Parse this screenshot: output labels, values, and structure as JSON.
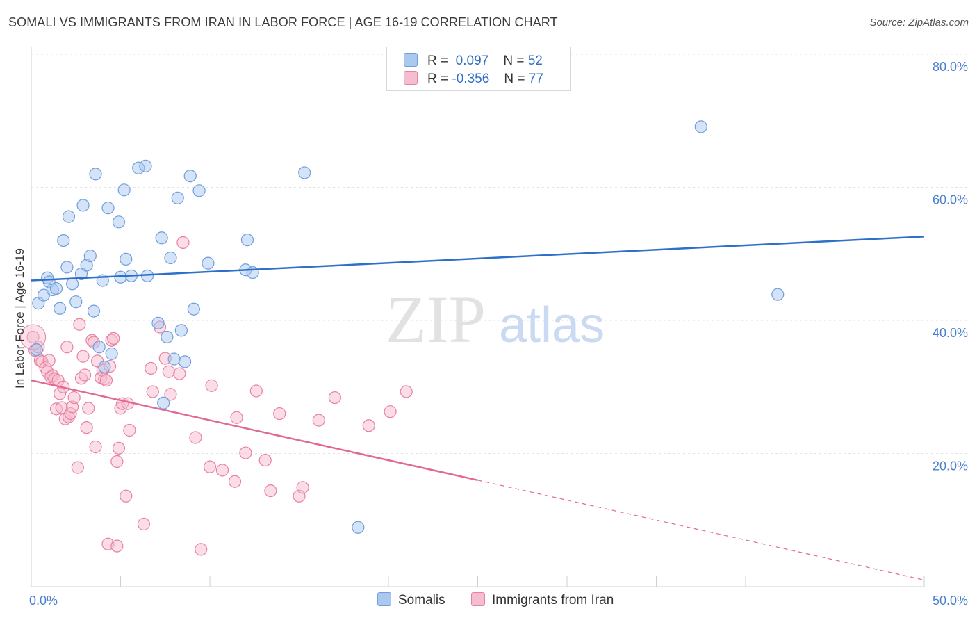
{
  "title": "SOMALI VS IMMIGRANTS FROM IRAN IN LABOR FORCE | AGE 16-19 CORRELATION CHART",
  "source": "Source: ZipAtlas.com",
  "watermark": {
    "zip": "ZIP",
    "atlas": "atlas"
  },
  "colors": {
    "blue_fill": "#aac8f0",
    "blue_stroke": "#6f9fdc",
    "blue_line": "#2e6fc9",
    "pink_fill": "#f6bcd0",
    "pink_stroke": "#e9819f",
    "pink_line": "#e06a95"
  },
  "legend": {
    "rows": [
      {
        "r_label": "R =",
        "r_value": "0.097",
        "n_label": "N =",
        "n_value": "52"
      },
      {
        "r_label": "R =",
        "r_value": "-0.356",
        "n_label": "N =",
        "n_value": "77"
      }
    ]
  },
  "bottom_legend": [
    "Somalis",
    "Immigrants from Iran"
  ],
  "chart_data": {
    "type": "scatter",
    "title": "SOMALI VS IMMIGRANTS FROM IRAN IN LABOR FORCE | AGE 16-19 CORRELATION CHART",
    "ylabel": "In Labor Force | Age 16-19",
    "xlim": [
      0,
      50
    ],
    "ylim": [
      0,
      80
    ],
    "x_tick_labels": [
      "0.0%",
      "50.0%"
    ],
    "y_ticks": [
      20,
      40,
      60,
      80
    ],
    "y_tick_labels": [
      "20.0%",
      "40.0%",
      "60.0%",
      "80.0%"
    ],
    "grid": "horizontal dashed",
    "legend_placement": "top-center",
    "series": [
      {
        "name": "Somalis",
        "r": 0.097,
        "n": 52,
        "trend": {
          "x": [
            0,
            50
          ],
          "y": [
            46.0,
            52.6
          ],
          "dashed_from": null
        },
        "points": [
          [
            0.4,
            42.6
          ],
          [
            0.7,
            43.8
          ],
          [
            0.9,
            46.4
          ],
          [
            1.0,
            45.8
          ],
          [
            1.2,
            44.6
          ],
          [
            1.4,
            44.8
          ],
          [
            1.6,
            41.8
          ],
          [
            1.8,
            52.0
          ],
          [
            2.0,
            48.0
          ],
          [
            2.1,
            55.6
          ],
          [
            2.3,
            45.5
          ],
          [
            2.5,
            42.8
          ],
          [
            2.8,
            47.0
          ],
          [
            2.9,
            57.3
          ],
          [
            3.1,
            48.3
          ],
          [
            3.3,
            49.7
          ],
          [
            3.5,
            41.4
          ],
          [
            3.6,
            62.0
          ],
          [
            3.8,
            36.0
          ],
          [
            4.0,
            46.0
          ],
          [
            4.1,
            33.0
          ],
          [
            4.3,
            56.9
          ],
          [
            4.5,
            35.0
          ],
          [
            4.9,
            54.8
          ],
          [
            5.0,
            46.5
          ],
          [
            5.2,
            59.6
          ],
          [
            5.3,
            49.2
          ],
          [
            5.6,
            46.7
          ],
          [
            6.0,
            62.9
          ],
          [
            6.4,
            63.2
          ],
          [
            7.1,
            39.6
          ],
          [
            7.3,
            52.4
          ],
          [
            7.4,
            27.6
          ],
          [
            7.6,
            37.5
          ],
          [
            7.8,
            49.4
          ],
          [
            8.0,
            34.2
          ],
          [
            8.2,
            58.4
          ],
          [
            8.4,
            38.5
          ],
          [
            8.6,
            33.8
          ],
          [
            8.9,
            61.7
          ],
          [
            9.1,
            41.7
          ],
          [
            9.4,
            59.5
          ],
          [
            9.9,
            48.6
          ],
          [
            12.0,
            47.6
          ],
          [
            12.1,
            52.1
          ],
          [
            12.4,
            47.2
          ],
          [
            15.3,
            62.2
          ],
          [
            18.3,
            8.9
          ],
          [
            37.5,
            69.1
          ],
          [
            41.8,
            43.9
          ],
          [
            0.3,
            35.6
          ],
          [
            6.5,
            46.7
          ]
        ]
      },
      {
        "name": "Immigrants from Iran",
        "r": -0.356,
        "n": 77,
        "trend": {
          "x": [
            0,
            50
          ],
          "y": [
            31.0,
            1.0
          ],
          "dashed_from": 25.0
        },
        "points": [
          [
            0.1,
            37.5
          ],
          [
            0.2,
            35.5
          ],
          [
            0.4,
            36.0
          ],
          [
            0.5,
            34.0
          ],
          [
            0.6,
            33.8
          ],
          [
            0.8,
            32.9
          ],
          [
            0.9,
            32.3
          ],
          [
            1.0,
            34.0
          ],
          [
            1.1,
            31.5
          ],
          [
            1.2,
            31.7
          ],
          [
            1.3,
            31.2
          ],
          [
            1.4,
            26.7
          ],
          [
            1.5,
            31.0
          ],
          [
            1.6,
            29.0
          ],
          [
            1.7,
            26.9
          ],
          [
            1.8,
            30.0
          ],
          [
            1.9,
            25.2
          ],
          [
            2.0,
            36.0
          ],
          [
            2.1,
            25.5
          ],
          [
            2.2,
            26.0
          ],
          [
            2.3,
            27.0
          ],
          [
            2.4,
            28.4
          ],
          [
            2.6,
            17.9
          ],
          [
            2.7,
            39.4
          ],
          [
            2.8,
            31.3
          ],
          [
            2.9,
            34.6
          ],
          [
            3.0,
            31.8
          ],
          [
            3.1,
            23.9
          ],
          [
            3.2,
            26.8
          ],
          [
            3.4,
            37.0
          ],
          [
            3.5,
            36.7
          ],
          [
            3.6,
            21.0
          ],
          [
            3.7,
            33.9
          ],
          [
            3.9,
            31.4
          ],
          [
            4.0,
            32.5
          ],
          [
            4.1,
            31.2
          ],
          [
            4.2,
            31.0
          ],
          [
            4.3,
            6.4
          ],
          [
            4.4,
            33.1
          ],
          [
            4.5,
            37.0
          ],
          [
            4.6,
            37.3
          ],
          [
            4.8,
            18.8
          ],
          [
            4.8,
            6.1
          ],
          [
            4.9,
            20.8
          ],
          [
            5.0,
            26.8
          ],
          [
            5.1,
            27.5
          ],
          [
            5.3,
            13.6
          ],
          [
            5.4,
            27.5
          ],
          [
            5.5,
            23.5
          ],
          [
            6.3,
            9.4
          ],
          [
            6.7,
            32.8
          ],
          [
            6.8,
            29.3
          ],
          [
            7.2,
            39.0
          ],
          [
            7.5,
            34.3
          ],
          [
            7.7,
            32.3
          ],
          [
            7.8,
            28.9
          ],
          [
            8.3,
            32.0
          ],
          [
            8.5,
            51.7
          ],
          [
            9.2,
            22.4
          ],
          [
            9.5,
            5.6
          ],
          [
            10.0,
            18.0
          ],
          [
            10.1,
            30.2
          ],
          [
            10.7,
            17.5
          ],
          [
            11.4,
            15.8
          ],
          [
            11.5,
            25.4
          ],
          [
            12.0,
            20.1
          ],
          [
            12.6,
            29.4
          ],
          [
            13.1,
            19.0
          ],
          [
            13.4,
            14.4
          ],
          [
            13.9,
            26.0
          ],
          [
            15.0,
            13.6
          ],
          [
            15.2,
            14.9
          ],
          [
            16.1,
            25.0
          ],
          [
            17.0,
            28.4
          ],
          [
            18.9,
            24.2
          ],
          [
            20.1,
            26.3
          ],
          [
            21.0,
            29.3
          ]
        ]
      }
    ]
  }
}
